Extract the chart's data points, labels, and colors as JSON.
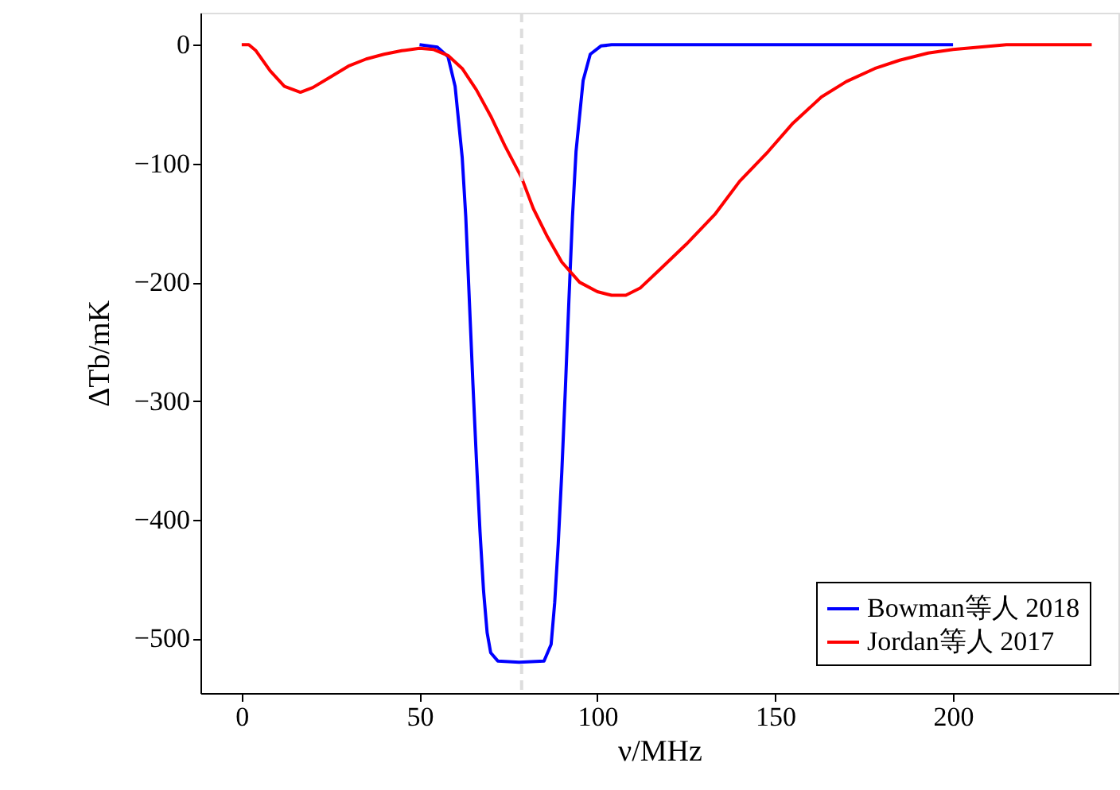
{
  "chart_data": {
    "type": "line",
    "xlabel": "ν/MHz",
    "ylabel": "ΔTb/mK",
    "xlim": [
      -11.6,
      246.5
    ],
    "xticks": [
      0,
      50,
      100,
      150,
      200
    ],
    "ylim": [
      -546,
      27
    ],
    "yticks": [
      0,
      -100,
      -200,
      -300,
      -400,
      -500
    ],
    "grid": false,
    "legend": "bottom right",
    "marker": "none",
    "line_style": "solid",
    "ref_lines": [
      {
        "axis": "x",
        "value": 78.7,
        "color": "#dddddd",
        "line_style": "dashed"
      }
    ],
    "series": [
      {
        "name": "Bowman等人 2018",
        "color": "#0000ff",
        "x": [
          50,
          55,
          58,
          60,
          62,
          63,
          64,
          65,
          66,
          67,
          68,
          69,
          70,
          72,
          78,
          85,
          87,
          88,
          89,
          90,
          91,
          92,
          93,
          94,
          96,
          98,
          101,
          104,
          200
        ],
        "values": [
          0,
          -2,
          -10,
          -35,
          -95,
          -145,
          -215,
          -285,
          -350,
          -410,
          -460,
          -495,
          -512,
          -519,
          -520,
          -519,
          -505,
          -470,
          -420,
          -360,
          -290,
          -215,
          -145,
          -90,
          -30,
          -8,
          -1,
          0,
          0
        ]
      },
      {
        "name": "Jordan等人 2017",
        "color": "#ff0000",
        "x": [
          0,
          2,
          4,
          8,
          12,
          16.5,
          20,
          25,
          30,
          35,
          40,
          45,
          50,
          54,
          58,
          62,
          66,
          70,
          74,
          78.7,
          82,
          86,
          90,
          95,
          100,
          104,
          108,
          112,
          118,
          125,
          133,
          140,
          148,
          155,
          163,
          170,
          178,
          185,
          193,
          200,
          215,
          239
        ],
        "values": [
          0,
          0,
          -5,
          -22,
          -35,
          -40,
          -36,
          -27,
          -18,
          -12,
          -8,
          -5,
          -3,
          -4,
          -9,
          -20,
          -38,
          -60,
          -85,
          -112,
          -138,
          -162,
          -183,
          -200,
          -208,
          -211,
          -211,
          -205,
          -188,
          -168,
          -143,
          -115,
          -90,
          -66,
          -44,
          -31,
          -20,
          -13,
          -7,
          -4,
          0,
          0
        ]
      }
    ]
  }
}
